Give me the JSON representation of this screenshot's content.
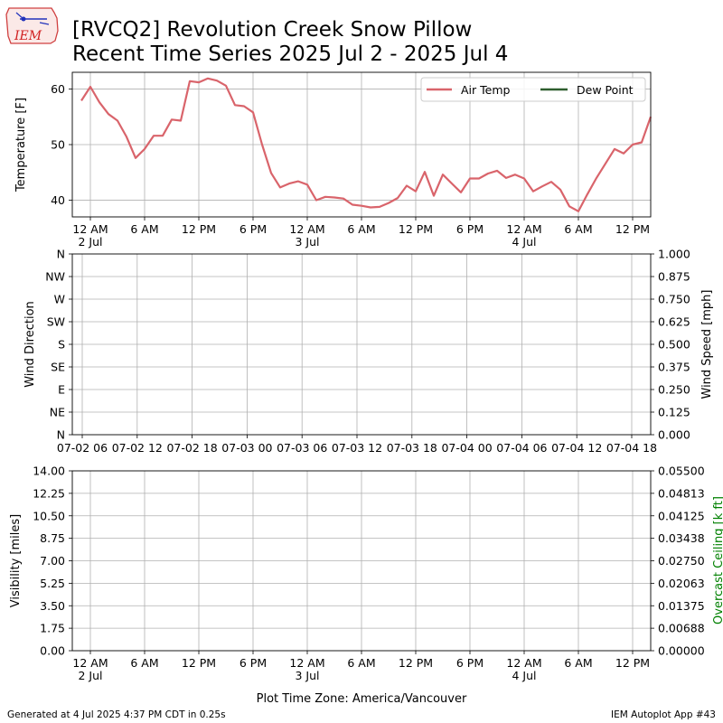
{
  "header": {
    "logo_text": "IEM",
    "title_line1": "[RVCQ2] Revolution Creek Snow Pillow",
    "title_line2": "Recent Time Series 2025 Jul 2 - 2025 Jul 4"
  },
  "footer": {
    "generated": "Generated at 4 Jul 2025 4:37 PM CDT in 0.25s",
    "app": "IEM Autoplot App #43",
    "timezone_label": "Plot Time Zone: America/Vancouver"
  },
  "colors": {
    "air_temp": "#d9646b",
    "dew_point": "#2e5e2e",
    "ceiling_label": "#008000",
    "grid": "#b0b0b0"
  },
  "chart_data": [
    {
      "type": "line",
      "ylabel": "Temperature [F]",
      "ylim": [
        37,
        63
      ],
      "yticks": [
        40,
        50,
        60
      ],
      "grid": true,
      "legend": {
        "placement": "top-right",
        "entries": [
          "Air Temp",
          "Dew Point"
        ]
      },
      "xlim_hours": [
        -2,
        62
      ],
      "xticks": [
        {
          "h": 0,
          "label": "12 AM",
          "sub": "2 Jul"
        },
        {
          "h": 6,
          "label": "6 AM",
          "sub": ""
        },
        {
          "h": 12,
          "label": "12 PM",
          "sub": ""
        },
        {
          "h": 18,
          "label": "6 PM",
          "sub": ""
        },
        {
          "h": 24,
          "label": "12 AM",
          "sub": "3 Jul"
        },
        {
          "h": 30,
          "label": "6 AM",
          "sub": ""
        },
        {
          "h": 36,
          "label": "12 PM",
          "sub": ""
        },
        {
          "h": 42,
          "label": "6 PM",
          "sub": ""
        },
        {
          "h": 48,
          "label": "12 AM",
          "sub": "4 Jul"
        },
        {
          "h": 54,
          "label": "6 AM",
          "sub": ""
        },
        {
          "h": 60,
          "label": "12 PM",
          "sub": ""
        }
      ],
      "series": [
        {
          "name": "Air Temp",
          "x": [
            -1,
            0,
            1,
            2,
            3,
            4,
            5,
            6,
            7,
            8,
            9,
            10,
            11,
            12,
            13,
            14,
            15,
            16,
            17,
            18,
            19,
            20,
            21,
            22,
            23,
            24,
            25,
            26,
            27,
            28,
            29,
            30,
            31,
            32,
            33,
            34,
            35,
            36,
            37,
            38,
            39,
            40,
            41,
            42,
            43,
            44,
            45,
            46,
            47,
            48,
            49,
            50,
            51,
            52,
            53,
            54,
            55,
            56,
            57,
            58,
            59,
            60,
            61,
            62
          ],
          "values": [
            57.9,
            60.4,
            57.6,
            55.5,
            54.3,
            51.4,
            47.6,
            49.2,
            51.6,
            51.6,
            54.5,
            54.3,
            61.4,
            61.2,
            61.9,
            61.5,
            60.6,
            57.1,
            56.9,
            55.8,
            50.0,
            44.9,
            42.3,
            43.0,
            43.4,
            42.8,
            40.0,
            40.6,
            40.5,
            40.3,
            39.2,
            39.0,
            38.7,
            38.8,
            39.5,
            40.4,
            42.6,
            41.6,
            45.1,
            40.8,
            44.6,
            43.0,
            41.4,
            43.9,
            43.9,
            44.8,
            45.3,
            44.0,
            44.6,
            43.9,
            41.6,
            42.5,
            43.3,
            41.9,
            38.9,
            38.0,
            41.1,
            44.0,
            46.6,
            49.2,
            48.4,
            50.0,
            50.4,
            55.0
          ]
        },
        {
          "name": "Dew Point",
          "x": [],
          "values": []
        }
      ]
    },
    {
      "type": "line",
      "ylabel": "Wind Direction",
      "y2label": "Wind Speed [mph]",
      "yticks": [
        "N",
        "NE",
        "E",
        "SE",
        "S",
        "SW",
        "W",
        "NW",
        "N"
      ],
      "y2ticks": [
        "0.000",
        "0.125",
        "0.250",
        "0.375",
        "0.500",
        "0.625",
        "0.750",
        "0.875",
        "1.000"
      ],
      "xticks": [
        "07-02 06",
        "07-02 12",
        "07-02 18",
        "07-03 00",
        "07-03 06",
        "07-03 12",
        "07-03 18",
        "07-04 00",
        "07-04 06",
        "07-04 12",
        "07-04 18"
      ],
      "grid": true,
      "series": []
    },
    {
      "type": "line",
      "ylabel": "Visibility [miles]",
      "y2label": "Overcast Ceiling [k ft]",
      "yticks": [
        "0.00",
        "1.75",
        "3.50",
        "5.25",
        "7.00",
        "8.75",
        "10.50",
        "12.25",
        "14.00"
      ],
      "y2ticks": [
        "0.00000",
        "0.00688",
        "0.01375",
        "0.02063",
        "0.02750",
        "0.03438",
        "0.04125",
        "0.04813",
        "0.05500"
      ],
      "xticks": [
        {
          "label": "12 AM",
          "sub": "2 Jul"
        },
        {
          "label": "6 AM",
          "sub": ""
        },
        {
          "label": "12 PM",
          "sub": ""
        },
        {
          "label": "6 PM",
          "sub": ""
        },
        {
          "label": "12 AM",
          "sub": "3 Jul"
        },
        {
          "label": "6 AM",
          "sub": ""
        },
        {
          "label": "12 PM",
          "sub": ""
        },
        {
          "label": "6 PM",
          "sub": ""
        },
        {
          "label": "12 AM",
          "sub": "4 Jul"
        },
        {
          "label": "6 AM",
          "sub": ""
        },
        {
          "label": "12 PM",
          "sub": ""
        }
      ],
      "grid": true,
      "series": []
    }
  ]
}
